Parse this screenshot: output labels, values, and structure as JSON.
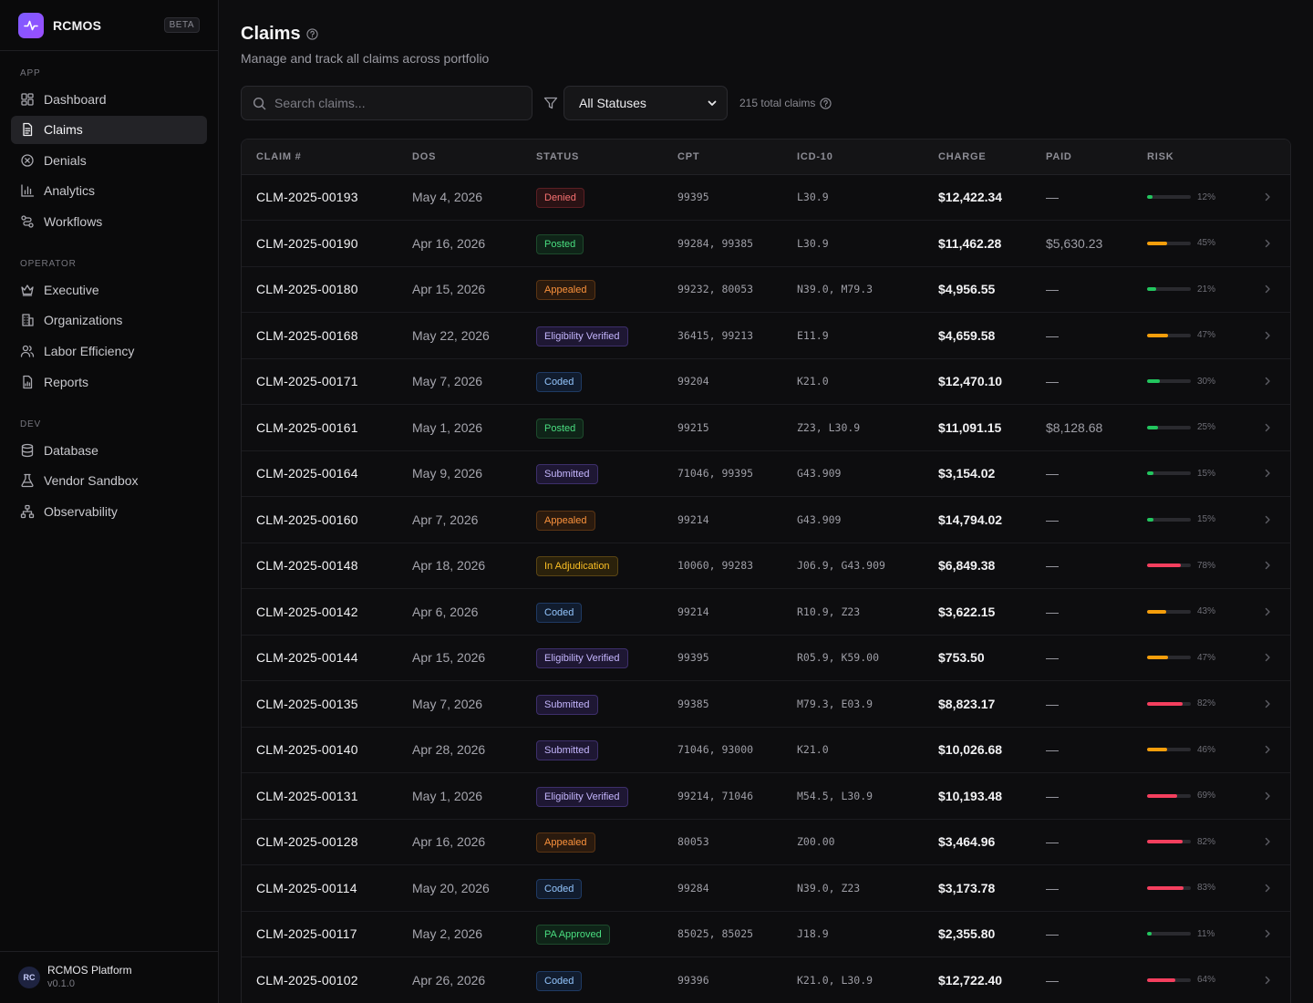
{
  "app": {
    "name": "RCMOS",
    "badge": "BETA"
  },
  "sidebar": {
    "sections": [
      {
        "heading": "APP",
        "items": [
          {
            "label": "Dashboard",
            "icon": "dashboard-icon"
          },
          {
            "label": "Claims",
            "icon": "document-icon",
            "active": true
          },
          {
            "label": "Denials",
            "icon": "x-circle-icon"
          },
          {
            "label": "Analytics",
            "icon": "bar-chart-icon"
          },
          {
            "label": "Workflows",
            "icon": "workflow-icon"
          }
        ]
      },
      {
        "heading": "OPERATOR",
        "items": [
          {
            "label": "Executive",
            "icon": "crown-icon"
          },
          {
            "label": "Organizations",
            "icon": "building-icon"
          },
          {
            "label": "Labor Efficiency",
            "icon": "users-icon"
          },
          {
            "label": "Reports",
            "icon": "report-icon"
          }
        ]
      },
      {
        "heading": "DEV",
        "items": [
          {
            "label": "Database",
            "icon": "database-icon"
          },
          {
            "label": "Vendor Sandbox",
            "icon": "flask-icon"
          },
          {
            "label": "Observability",
            "icon": "network-icon"
          }
        ]
      }
    ],
    "footer": {
      "initials": "RC",
      "title": "RCMOS Platform",
      "version": "v0.1.0"
    }
  },
  "page": {
    "title": "Claims",
    "subtitle": "Manage and track all claims across portfolio",
    "search_placeholder": "Search claims...",
    "status_filter": "All Statuses",
    "total": "215 total claims"
  },
  "table": {
    "columns": [
      "CLAIM #",
      "DOS",
      "STATUS",
      "CPT",
      "ICD-10",
      "CHARGE",
      "PAID",
      "RISK"
    ],
    "rows": [
      {
        "claim": "CLM-2025-00193",
        "dos": "May 4, 2026",
        "status": "Denied",
        "cpt": "99395",
        "icd": "L30.9",
        "charge": "$12,422.34",
        "paid": "—",
        "risk": 12,
        "risk_label": "12%"
      },
      {
        "claim": "CLM-2025-00190",
        "dos": "Apr 16, 2026",
        "status": "Posted",
        "cpt": "99284, 99385",
        "icd": "L30.9",
        "charge": "$11,462.28",
        "paid": "$5,630.23",
        "risk": 45,
        "risk_label": "45%"
      },
      {
        "claim": "CLM-2025-00180",
        "dos": "Apr 15, 2026",
        "status": "Appealed",
        "cpt": "99232, 80053",
        "icd": "N39.0, M79.3",
        "charge": "$4,956.55",
        "paid": "—",
        "risk": 21,
        "risk_label": "21%"
      },
      {
        "claim": "CLM-2025-00168",
        "dos": "May 22, 2026",
        "status": "Eligibility Verified",
        "cpt": "36415, 99213",
        "icd": "E11.9",
        "charge": "$4,659.58",
        "paid": "—",
        "risk": 47,
        "risk_label": "47%"
      },
      {
        "claim": "CLM-2025-00171",
        "dos": "May 7, 2026",
        "status": "Coded",
        "cpt": "99204",
        "icd": "K21.0",
        "charge": "$12,470.10",
        "paid": "—",
        "risk": 30,
        "risk_label": "30%"
      },
      {
        "claim": "CLM-2025-00161",
        "dos": "May 1, 2026",
        "status": "Posted",
        "cpt": "99215",
        "icd": "Z23, L30.9",
        "charge": "$11,091.15",
        "paid": "$8,128.68",
        "risk": 25,
        "risk_label": "25%"
      },
      {
        "claim": "CLM-2025-00164",
        "dos": "May 9, 2026",
        "status": "Submitted",
        "cpt": "71046, 99395",
        "icd": "G43.909",
        "charge": "$3,154.02",
        "paid": "—",
        "risk": 15,
        "risk_label": "15%"
      },
      {
        "claim": "CLM-2025-00160",
        "dos": "Apr 7, 2026",
        "status": "Appealed",
        "cpt": "99214",
        "icd": "G43.909",
        "charge": "$14,794.02",
        "paid": "—",
        "risk": 15,
        "risk_label": "15%"
      },
      {
        "claim": "CLM-2025-00148",
        "dos": "Apr 18, 2026",
        "status": "In Adjudication",
        "cpt": "10060, 99283",
        "icd": "J06.9, G43.909",
        "charge": "$6,849.38",
        "paid": "—",
        "risk": 78,
        "risk_label": "78%"
      },
      {
        "claim": "CLM-2025-00142",
        "dos": "Apr 6, 2026",
        "status": "Coded",
        "cpt": "99214",
        "icd": "R10.9, Z23",
        "charge": "$3,622.15",
        "paid": "—",
        "risk": 43,
        "risk_label": "43%"
      },
      {
        "claim": "CLM-2025-00144",
        "dos": "Apr 15, 2026",
        "status": "Eligibility Verified",
        "cpt": "99395",
        "icd": "R05.9, K59.00",
        "charge": "$753.50",
        "paid": "—",
        "risk": 47,
        "risk_label": "47%"
      },
      {
        "claim": "CLM-2025-00135",
        "dos": "May 7, 2026",
        "status": "Submitted",
        "cpt": "99385",
        "icd": "M79.3, E03.9",
        "charge": "$8,823.17",
        "paid": "—",
        "risk": 82,
        "risk_label": "82%"
      },
      {
        "claim": "CLM-2025-00140",
        "dos": "Apr 28, 2026",
        "status": "Submitted",
        "cpt": "71046, 93000",
        "icd": "K21.0",
        "charge": "$10,026.68",
        "paid": "—",
        "risk": 46,
        "risk_label": "46%"
      },
      {
        "claim": "CLM-2025-00131",
        "dos": "May 1, 2026",
        "status": "Eligibility Verified",
        "cpt": "99214, 71046",
        "icd": "M54.5, L30.9",
        "charge": "$10,193.48",
        "paid": "—",
        "risk": 69,
        "risk_label": "69%"
      },
      {
        "claim": "CLM-2025-00128",
        "dos": "Apr 16, 2026",
        "status": "Appealed",
        "cpt": "80053",
        "icd": "Z00.00",
        "charge": "$3,464.96",
        "paid": "—",
        "risk": 82,
        "risk_label": "82%"
      },
      {
        "claim": "CLM-2025-00114",
        "dos": "May 20, 2026",
        "status": "Coded",
        "cpt": "99284",
        "icd": "N39.0, Z23",
        "charge": "$3,173.78",
        "paid": "—",
        "risk": 83,
        "risk_label": "83%"
      },
      {
        "claim": "CLM-2025-00117",
        "dos": "May 2, 2026",
        "status": "PA Approved",
        "cpt": "85025, 85025",
        "icd": "J18.9",
        "charge": "$2,355.80",
        "paid": "—",
        "risk": 11,
        "risk_label": "11%"
      },
      {
        "claim": "CLM-2025-00102",
        "dos": "Apr 26, 2026",
        "status": "Coded",
        "cpt": "99396",
        "icd": "K21.0, L30.9",
        "charge": "$12,722.40",
        "paid": "—",
        "risk": 64,
        "risk_label": "64%"
      }
    ]
  },
  "colors": {
    "accent": "#7c5cff",
    "risk_low": "#22c55e",
    "risk_medium": "#f59e0b",
    "risk_high": "#f43f5e",
    "status": {
      "Denied": {
        "fg": "#f87171",
        "bg": "#2a1214",
        "border": "#5c1f24"
      },
      "Posted": {
        "fg": "#4ade80",
        "bg": "#0f2418",
        "border": "#1d4a2c"
      },
      "Appealed": {
        "fg": "#fb923c",
        "bg": "#2a1a0e",
        "border": "#5a3414"
      },
      "Eligibility Verified": {
        "fg": "#c4b5fd",
        "bg": "#1e1733",
        "border": "#3d2f6b"
      },
      "Coded": {
        "fg": "#93c5fd",
        "bg": "#111c2e",
        "border": "#1f3a63"
      },
      "Submitted": {
        "fg": "#c4b5fd",
        "bg": "#1e1733",
        "border": "#3d2f6b"
      },
      "In Adjudication": {
        "fg": "#fbbf24",
        "bg": "#2a210b",
        "border": "#5a4514"
      },
      "PA Approved": {
        "fg": "#4ade80",
        "bg": "#0f2418",
        "border": "#1d4a2c"
      }
    }
  }
}
